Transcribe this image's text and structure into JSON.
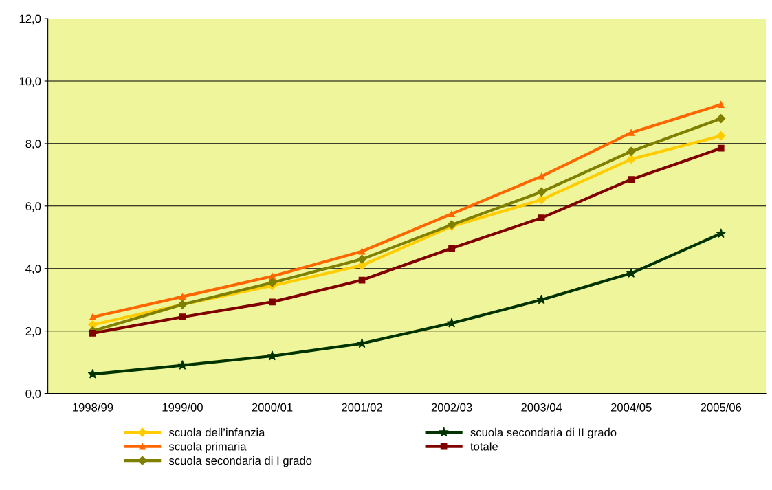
{
  "chart_data": {
    "type": "line",
    "categories": [
      "1998/99",
      "1999/00",
      "2000/01",
      "2001/02",
      "2002/03",
      "2003/04",
      "2004/05",
      "2005/06"
    ],
    "series": [
      {
        "name": "scuola dell’infanzia",
        "color": "#ffcc00",
        "marker": "diamond",
        "values": [
          2.2,
          2.85,
          3.45,
          4.1,
          5.35,
          6.2,
          7.5,
          8.25
        ]
      },
      {
        "name": "scuola primaria",
        "color": "#ff6600",
        "marker": "triangle",
        "values": [
          2.45,
          3.1,
          3.75,
          4.55,
          5.75,
          6.95,
          8.35,
          9.25
        ]
      },
      {
        "name": "scuola secondaria di I grado",
        "color": "#808000",
        "marker": "diamond",
        "values": [
          2.0,
          2.85,
          3.55,
          4.3,
          5.4,
          6.45,
          7.75,
          8.8
        ]
      },
      {
        "name": "scuola secondaria di II grado",
        "color": "#003300",
        "marker": "star",
        "values": [
          0.62,
          0.9,
          1.2,
          1.6,
          2.25,
          3.0,
          3.85,
          5.12
        ]
      },
      {
        "name": "totale",
        "color": "#800000",
        "marker": "square",
        "values": [
          1.93,
          2.45,
          2.93,
          3.63,
          4.65,
          5.62,
          6.85,
          7.85
        ]
      }
    ],
    "ylim": [
      0,
      12
    ],
    "yticks": [
      {
        "value": 0,
        "label": "0,0"
      },
      {
        "value": 2,
        "label": "2,0"
      },
      {
        "value": 4,
        "label": "4,0"
      },
      {
        "value": 6,
        "label": "6,0"
      },
      {
        "value": 8,
        "label": "8,0"
      },
      {
        "value": 10,
        "label": "10,0"
      },
      {
        "value": 12,
        "label": "12,0"
      }
    ],
    "grid": "y",
    "legend": "bottom",
    "line_style": "solid"
  }
}
